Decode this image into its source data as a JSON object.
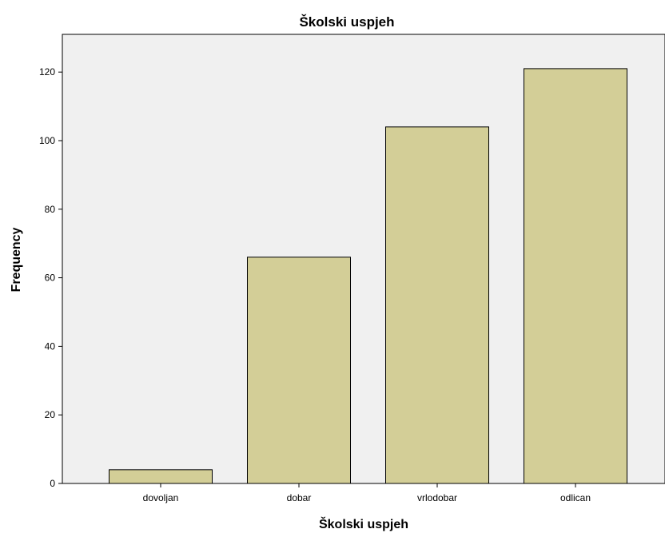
{
  "chart_data": {
    "type": "bar",
    "title": "Školski uspjeh",
    "xlabel": "Školski uspjeh",
    "ylabel": "Frequency",
    "categories": [
      "dovoljan",
      "dobar",
      "vrlodobar",
      "odlican"
    ],
    "values": [
      4,
      66,
      104,
      121
    ],
    "ylim": [
      0,
      131
    ],
    "yticks": [
      0,
      20,
      40,
      60,
      80,
      100,
      120
    ],
    "grid": false,
    "legend": "none",
    "colors": {
      "bar_fill": "#D3CE97",
      "bar_stroke": "#000000",
      "plot_background": "#F0F0F0",
      "page_background": "#FFFFFF"
    }
  }
}
